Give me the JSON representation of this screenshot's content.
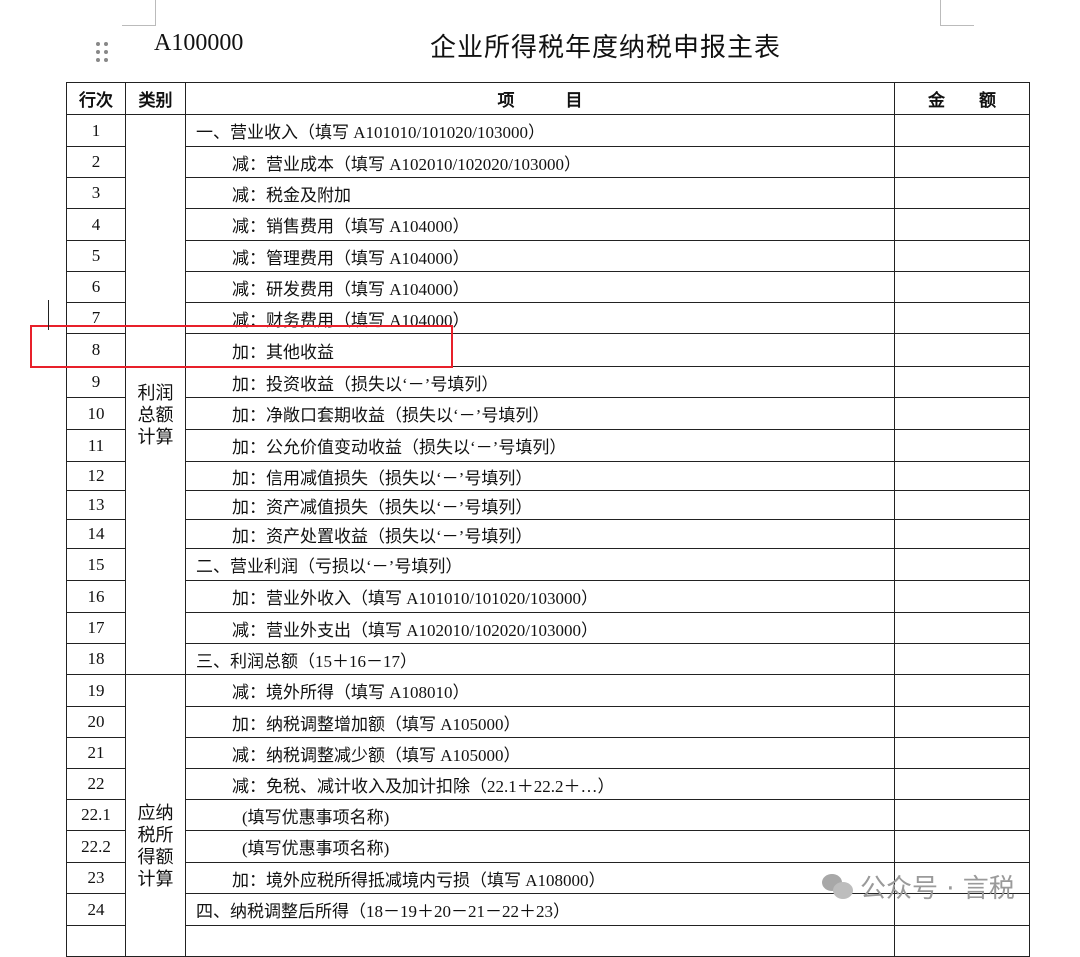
{
  "form_code": "A100000",
  "title": "企业所得税年度纳税申报主表",
  "headers": {
    "row_no": "行次",
    "category": "类别",
    "item": "项　　　目",
    "amount": "金　　额"
  },
  "categories": [
    {
      "label": "利润总额计算",
      "rows": 18
    },
    {
      "label": "应纳税所得额计算",
      "rows": 9
    }
  ],
  "rows": [
    {
      "no": "1",
      "item": "一、营业收入（填写 A101010/101020/103000）",
      "indent": 0,
      "amount": ""
    },
    {
      "no": "2",
      "item": "减：营业成本（填写 A102010/102020/103000）",
      "indent": 1,
      "amount": ""
    },
    {
      "no": "3",
      "item": "减：税金及附加",
      "indent": 1,
      "amount": ""
    },
    {
      "no": "4",
      "item": "减：销售费用（填写 A104000）",
      "indent": 1,
      "amount": ""
    },
    {
      "no": "5",
      "item": "减：管理费用（填写 A104000）",
      "indent": 1,
      "amount": ""
    },
    {
      "no": "6",
      "item": "减：研发费用（填写 A104000）",
      "indent": 1,
      "amount": ""
    },
    {
      "no": "7",
      "item": "减：财务费用（填写 A104000）",
      "indent": 1,
      "amount": ""
    },
    {
      "no": "8",
      "item": "加：其他收益",
      "indent": 1,
      "amount": "",
      "highlighted": true
    },
    {
      "no": "9",
      "item": "加：投资收益（损失以‘－’号填列）",
      "indent": 1,
      "amount": ""
    },
    {
      "no": "10",
      "item": "加：净敞口套期收益（损失以‘－’号填列）",
      "indent": 1,
      "amount": ""
    },
    {
      "no": "11",
      "item": "加：公允价值变动收益（损失以‘－’号填列）",
      "indent": 1,
      "amount": ""
    },
    {
      "no": "12",
      "item": "加：信用减值损失（损失以‘－’号填列）",
      "indent": 1,
      "amount": ""
    },
    {
      "no": "13",
      "item": "加：资产减值损失（损失以‘－’号填列）",
      "indent": 1,
      "amount": ""
    },
    {
      "no": "14",
      "item": "加：资产处置收益（损失以‘－’号填列）",
      "indent": 1,
      "amount": ""
    },
    {
      "no": "15",
      "item": "二、营业利润（亏损以‘－’号填列）",
      "indent": 0,
      "amount": ""
    },
    {
      "no": "16",
      "item": "加：营业外收入（填写 A101010/101020/103000）",
      "indent": 1,
      "amount": ""
    },
    {
      "no": "17",
      "item": "减：营业外支出（填写 A102010/102020/103000）",
      "indent": 1,
      "amount": ""
    },
    {
      "no": "18",
      "item": "三、利润总额（15＋16－17）",
      "indent": 0,
      "amount": ""
    },
    {
      "no": "19",
      "item": "减：境外所得（填写 A108010）",
      "indent": 1,
      "amount": ""
    },
    {
      "no": "20",
      "item": "加：纳税调整增加额（填写 A105000）",
      "indent": 1,
      "amount": ""
    },
    {
      "no": "21",
      "item": "减：纳税调整减少额（填写 A105000）",
      "indent": 1,
      "amount": ""
    },
    {
      "no": "22",
      "item": "减：免税、减计收入及加计扣除（22.1＋22.2＋…）",
      "indent": 1,
      "amount": ""
    },
    {
      "no": "22.1",
      "item": "(填写优惠事项名称)",
      "indent": 2,
      "amount": ""
    },
    {
      "no": "22.2",
      "item": "(填写优惠事项名称)",
      "indent": 2,
      "amount": ""
    },
    {
      "no": "23",
      "item": "加：境外应税所得抵减境内亏损（填写 A108000）",
      "indent": 1,
      "amount": ""
    },
    {
      "no": "24",
      "item": "四、纳税调整后所得（18－19＋20－21－22＋23）",
      "indent": 0,
      "amount": ""
    },
    {
      "no": "",
      "item": "",
      "indent": 0,
      "amount": ""
    }
  ],
  "highlight_color": "#e8202a",
  "watermark": {
    "icon": "wechat-icon",
    "text": "公众号 · 言税"
  }
}
